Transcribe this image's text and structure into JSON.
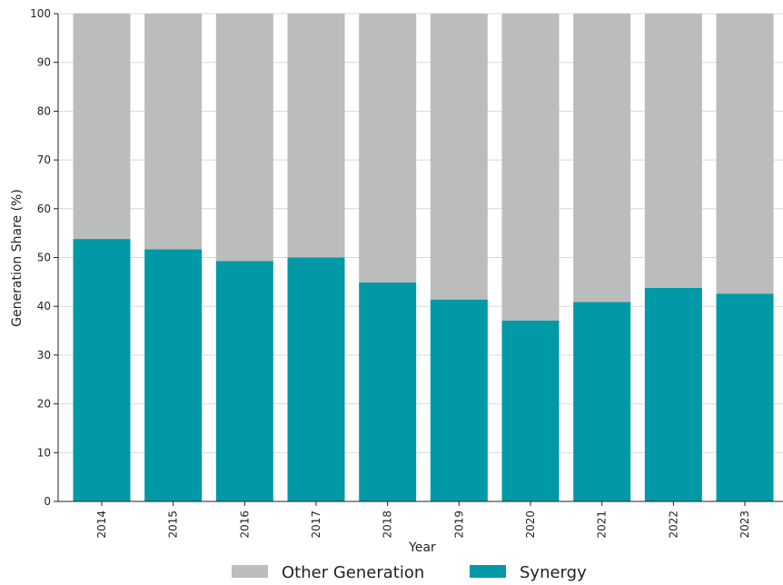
{
  "chart_data": {
    "type": "bar",
    "stacked": true,
    "categories": [
      "2014",
      "2015",
      "2016",
      "2017",
      "2018",
      "2019",
      "2020",
      "2021",
      "2022",
      "2023"
    ],
    "series": [
      {
        "name": "Synergy",
        "color": "#0199a5",
        "values": [
          53.8,
          51.7,
          49.3,
          50.0,
          44.9,
          41.4,
          37.1,
          40.9,
          43.8,
          42.6
        ]
      },
      {
        "name": "Other Generation",
        "color": "#bbbcbc",
        "values": [
          46.2,
          48.3,
          50.7,
          50.0,
          55.1,
          58.6,
          62.9,
          59.1,
          56.2,
          57.4
        ]
      }
    ],
    "xlabel": "Year",
    "ylabel": "Generation Share (%)",
    "ylim": [
      0,
      100
    ],
    "yticks": [
      0,
      10,
      20,
      30,
      40,
      50,
      60,
      70,
      80,
      90,
      100
    ],
    "grid": "horizontal",
    "legend": {
      "position": "bottom-center",
      "order": [
        "Other Generation",
        "Synergy"
      ]
    }
  }
}
